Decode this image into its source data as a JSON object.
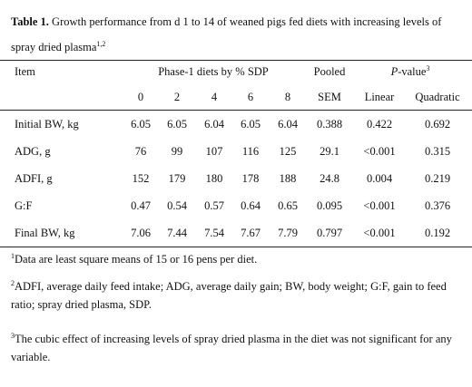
{
  "caption": {
    "label": "Table 1.",
    "text": " Growth performance from d 1 to 14 of weaned pigs fed diets with increasing levels of spray dried plasma",
    "sup": "1,2"
  },
  "header": {
    "item": "Item",
    "group": "Phase-1 diets by % SDP",
    "pooled": "Pooled",
    "pvalue": "P",
    "pvalue_rest": "-value",
    "pvalue_sup": "3",
    "levels": [
      "0",
      "2",
      "4",
      "6",
      "8"
    ],
    "sem": "SEM",
    "linear": "Linear",
    "quadratic": "Quadratic"
  },
  "rows": [
    {
      "item": "Initial BW, kg",
      "values": [
        "6.05",
        "6.05",
        "6.04",
        "6.05",
        "6.04"
      ],
      "sem": "0.388",
      "linear": "0.422",
      "quadratic": "0.692"
    },
    {
      "item": "ADG, g",
      "values": [
        "76",
        "99",
        "107",
        "116",
        "125"
      ],
      "sem": "29.1",
      "linear": "<0.001",
      "quadratic": "0.315"
    },
    {
      "item": "ADFI, g",
      "values": [
        "152",
        "179",
        "180",
        "178",
        "188"
      ],
      "sem": "24.8",
      "linear": "0.004",
      "quadratic": "0.219"
    },
    {
      "item": "G:F",
      "values": [
        "0.47",
        "0.54",
        "0.57",
        "0.64",
        "0.65"
      ],
      "sem": "0.095",
      "linear": "<0.001",
      "quadratic": "0.376"
    },
    {
      "item": "Final BW, kg",
      "values": [
        "7.06",
        "7.44",
        "7.54",
        "7.67",
        "7.79"
      ],
      "sem": "0.797",
      "linear": "<0.001",
      "quadratic": "0.192"
    }
  ],
  "footnotes": [
    {
      "mark": "1",
      "text": "Data are least square means of 15 or 16 pens per diet."
    },
    {
      "mark": "2",
      "text": "ADFI, average daily feed intake; ADG, average daily gain; BW, body weight; G:F, gain to feed ratio; spray dried plasma, SDP."
    },
    {
      "mark": "3",
      "text": "The cubic effect of increasing levels of spray dried plasma in the diet was not significant for any variable."
    }
  ]
}
